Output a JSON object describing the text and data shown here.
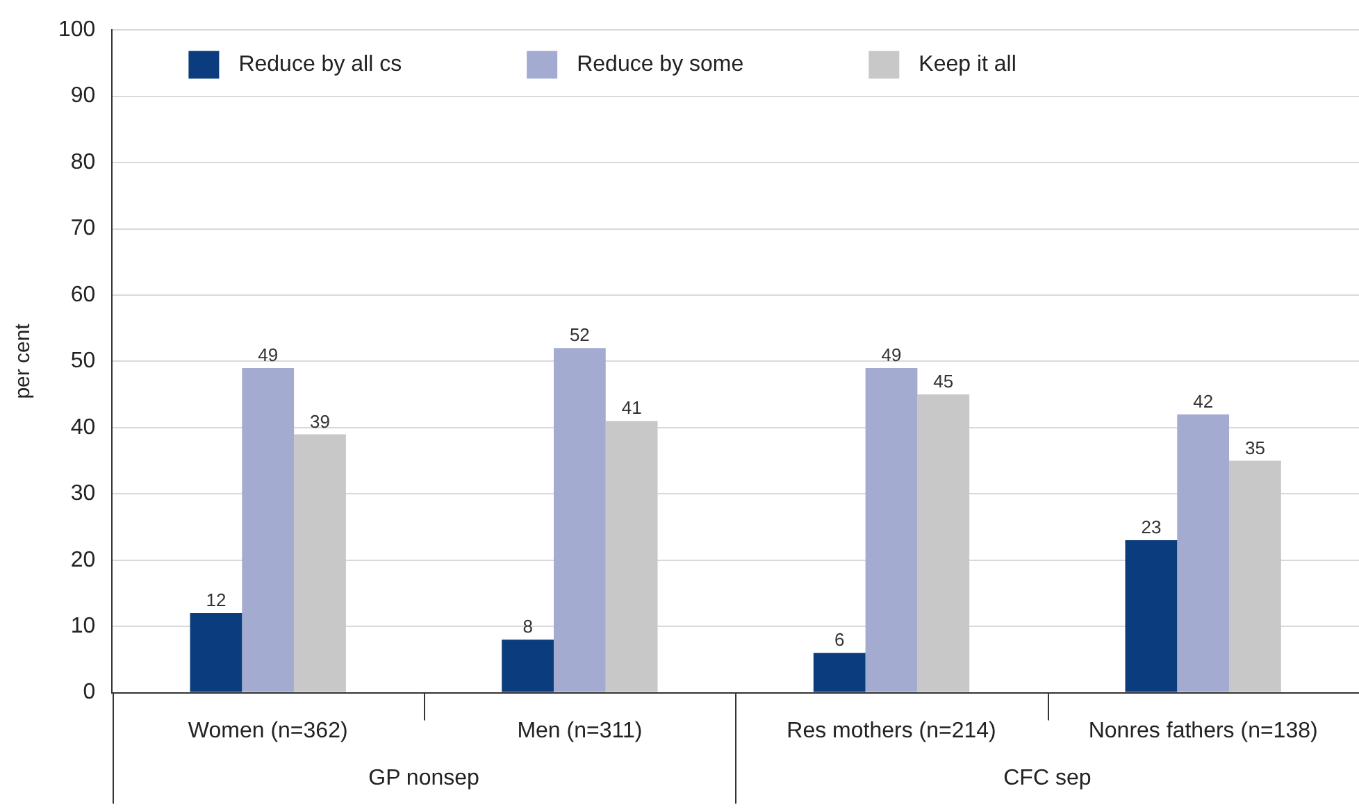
{
  "chart_data": {
    "type": "bar",
    "ylabel": "per cent",
    "categories": [
      "Women (n=362)",
      "Men (n=311)",
      "Res mothers (n=214)",
      "Nonres fathers (n=138)"
    ],
    "series": [
      {
        "name": "Reduce by all cs",
        "color": "#0b3c7d",
        "values": [
          12,
          8,
          6,
          23
        ]
      },
      {
        "name": "Reduce by some",
        "color": "#a3acd0",
        "values": [
          49,
          52,
          49,
          42
        ]
      },
      {
        "name": "Keep it all",
        "color": "#c8c8c8",
        "values": [
          39,
          41,
          45,
          35
        ]
      }
    ],
    "annotations": [
      "GP nonsep",
      "CFC sep"
    ],
    "ylim": [
      0,
      100
    ],
    "yticks": [
      0,
      10,
      20,
      30,
      40,
      50,
      60,
      70,
      80,
      90,
      100
    ],
    "grid": "y",
    "legend": "top left",
    "data_labels": true
  }
}
